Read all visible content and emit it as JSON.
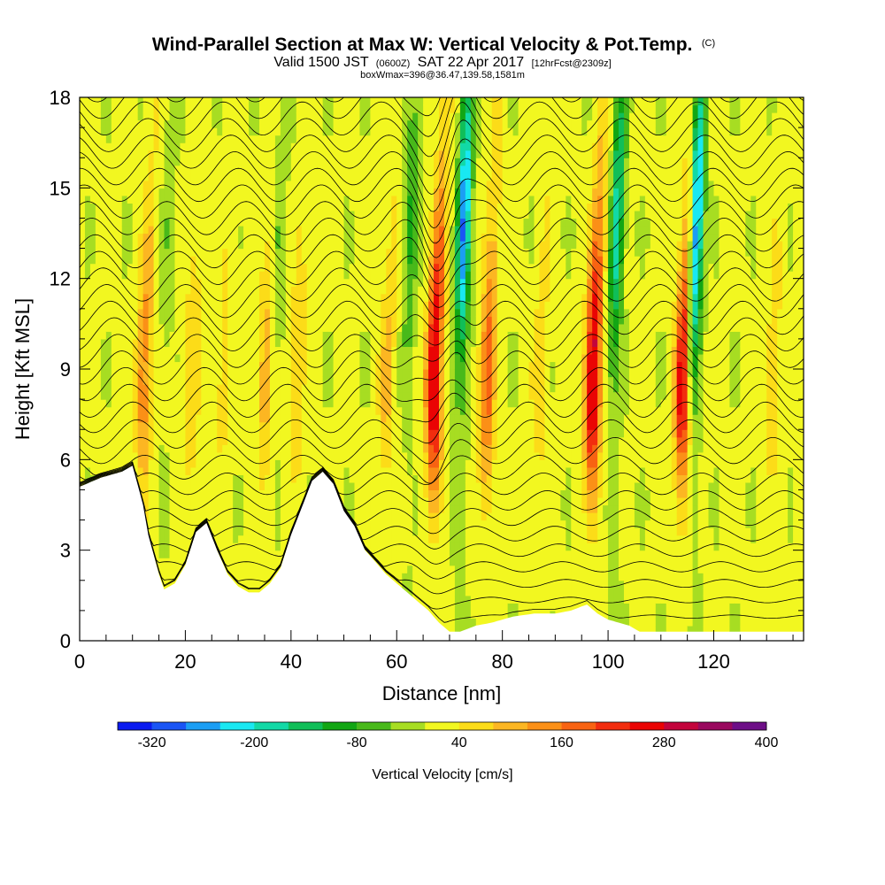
{
  "chart_data": {
    "type": "heatmap",
    "title": "Wind-Parallel Section at Max W: Vertical Velocity & Pot.Temp.",
    "title_suffix": "(C)",
    "subtitle_main_1": "Valid 1500 JST",
    "subtitle_small_1": "(0600Z)",
    "subtitle_main_2": "SAT 22 Apr 2017",
    "subtitle_small_2": "[12hrFcst@2309z]",
    "subtitle_line2": "boxWmax=396@36.47,139.58,1581m",
    "xlabel": "Distance [nm]",
    "ylabel": "Height [Kft MSL]",
    "xlim": [
      0,
      137
    ],
    "ylim": [
      0,
      18
    ],
    "x_ticks": [
      0,
      20,
      40,
      60,
      80,
      100,
      120
    ],
    "y_ticks": [
      0,
      3,
      6,
      9,
      12,
      15,
      18
    ],
    "colorbar": {
      "label": "Vertical Velocity [cm/s]",
      "min": -360,
      "step": 40,
      "tick_labels": [
        -320,
        -200,
        -80,
        40,
        160,
        280,
        400
      ],
      "colors": [
        "#0b1bf0",
        "#1a55f5",
        "#1b9ef4",
        "#19e8f2",
        "#12d9a6",
        "#10be58",
        "#12a614",
        "#48b91a",
        "#a7dd22",
        "#f2f720",
        "#fcdc18",
        "#fcb622",
        "#fb9017",
        "#f86312",
        "#f22d0e",
        "#ea0404",
        "#c3043c",
        "#99085e",
        "#6d0e87"
      ]
    },
    "updraft_columns": [
      {
        "x": 12,
        "w_max": 140
      },
      {
        "x": 21,
        "w_max": 70
      },
      {
        "x": 27,
        "w_max": 50
      },
      {
        "x": 35,
        "w_max": 90
      },
      {
        "x": 41,
        "w_max": 70
      },
      {
        "x": 58,
        "w_max": 80
      },
      {
        "x": 67,
        "w_max": 300
      },
      {
        "x": 77,
        "w_max": 170
      },
      {
        "x": 87,
        "w_max": 60
      },
      {
        "x": 97,
        "w_max": 300
      },
      {
        "x": 114,
        "w_max": 260
      },
      {
        "x": 131,
        "w_max": 60
      }
    ],
    "downdraft_columns": [
      {
        "x": 16,
        "w_min": -40
      },
      {
        "x": 37,
        "w_min": -60
      },
      {
        "x": 62,
        "w_min": -100
      },
      {
        "x": 72,
        "w_min": -290
      },
      {
        "x": 101,
        "w_min": -200
      },
      {
        "x": 116,
        "w_min": -330
      }
    ],
    "terrain_profile": {
      "x": [
        0,
        4,
        6,
        8,
        10,
        12,
        13,
        15,
        16,
        18,
        20,
        22,
        24,
        26,
        28,
        30,
        32,
        34,
        36,
        38,
        40,
        42,
        44,
        46,
        48,
        50,
        52,
        54,
        56,
        58,
        60,
        62,
        64,
        66,
        68,
        70,
        72,
        75,
        78,
        82,
        86,
        90,
        93,
        96,
        98,
        100,
        102,
        104,
        106,
        110,
        120,
        130,
        137
      ],
      "height": [
        5.1,
        5.4,
        5.5,
        5.6,
        5.8,
        4.5,
        3.5,
        2.2,
        1.7,
        1.9,
        2.5,
        3.6,
        3.9,
        3.0,
        2.2,
        1.8,
        1.6,
        1.6,
        1.9,
        2.4,
        3.5,
        4.4,
        5.3,
        5.6,
        5.2,
        4.3,
        3.8,
        3.0,
        2.6,
        2.2,
        1.9,
        1.6,
        1.3,
        1.0,
        0.6,
        0.3,
        0.3,
        0.5,
        0.6,
        0.8,
        0.9,
        0.9,
        1.0,
        1.2,
        0.9,
        0.7,
        0.6,
        0.5,
        0.3,
        0.3,
        0.3,
        0.3,
        0.3
      ]
    }
  }
}
